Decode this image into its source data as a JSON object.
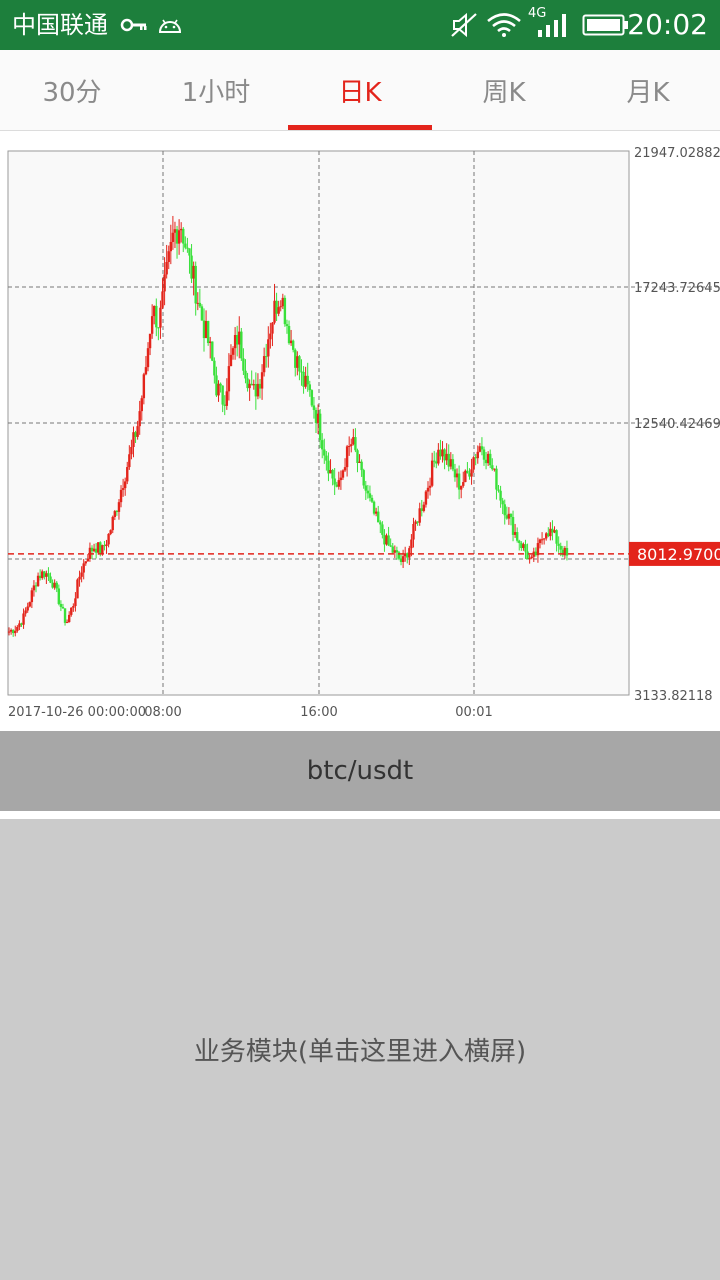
{
  "status_bar": {
    "carrier": "中国联通",
    "network_badge": "4G",
    "time": "20:02",
    "icons": [
      "key-icon",
      "android-icon",
      "mute-icon",
      "wifi-icon",
      "signal-icon",
      "battery-icon"
    ]
  },
  "tabs": [
    {
      "label": "30分",
      "active": false
    },
    {
      "label": "1小时",
      "active": false
    },
    {
      "label": "日K",
      "active": true
    },
    {
      "label": "周K",
      "active": false
    },
    {
      "label": "月K",
      "active": false
    }
  ],
  "colors": {
    "status_bar": "#1d7f3c",
    "accent": "#e3241b",
    "up": "#e3241b",
    "down": "#39e03a"
  },
  "chart": {
    "y_labels": [
      "21947.02882",
      "17243.72645",
      "12540.42469",
      "3133.82118"
    ],
    "x_labels": [
      "2017-10-26 00:00:00",
      "08:00",
      "16:00",
      "00:01"
    ],
    "current_price_label": "8012.9700"
  },
  "chart_data": {
    "type": "candlestick",
    "ylim": [
      3133.82118,
      21947.02882
    ],
    "y_ticks": [
      3133.82118,
      7837.12,
      12540.42469,
      17243.72645,
      21947.02882
    ],
    "x_tick_labels": [
      "2017-10-26 00:00:00",
      "08:00",
      "16:00",
      "00:01"
    ],
    "current_price": 8012.97,
    "grid": true,
    "close_path": [
      5330,
      5450,
      5800,
      6500,
      7250,
      7380,
      7100,
      6400,
      5600,
      6300,
      7400,
      8000,
      8300,
      8100,
      8700,
      9600,
      10600,
      11500,
      12500,
      14200,
      16500,
      16000,
      17600,
      19100,
      19500,
      18300,
      17300,
      16100,
      15200,
      13800,
      13300,
      14700,
      15600,
      14500,
      13500,
      14000,
      15300,
      16400,
      17100,
      15800,
      14900,
      14000,
      13600,
      12800,
      11700,
      10800,
      10200,
      11300,
      11900,
      10900,
      10100,
      9400,
      8800,
      8300,
      8000,
      7700,
      8300,
      9200,
      9900,
      10800,
      11700,
      11400,
      10900,
      10400,
      10700,
      11400,
      11800,
      11300,
      10600,
      9800,
      9200,
      8600,
      8200,
      7700,
      8200,
      8900,
      8700,
      8300,
      7900
    ]
  },
  "pair_bar": {
    "label": "btc/usdt"
  },
  "module": {
    "label": "业务模块(单击这里进入横屏)"
  }
}
